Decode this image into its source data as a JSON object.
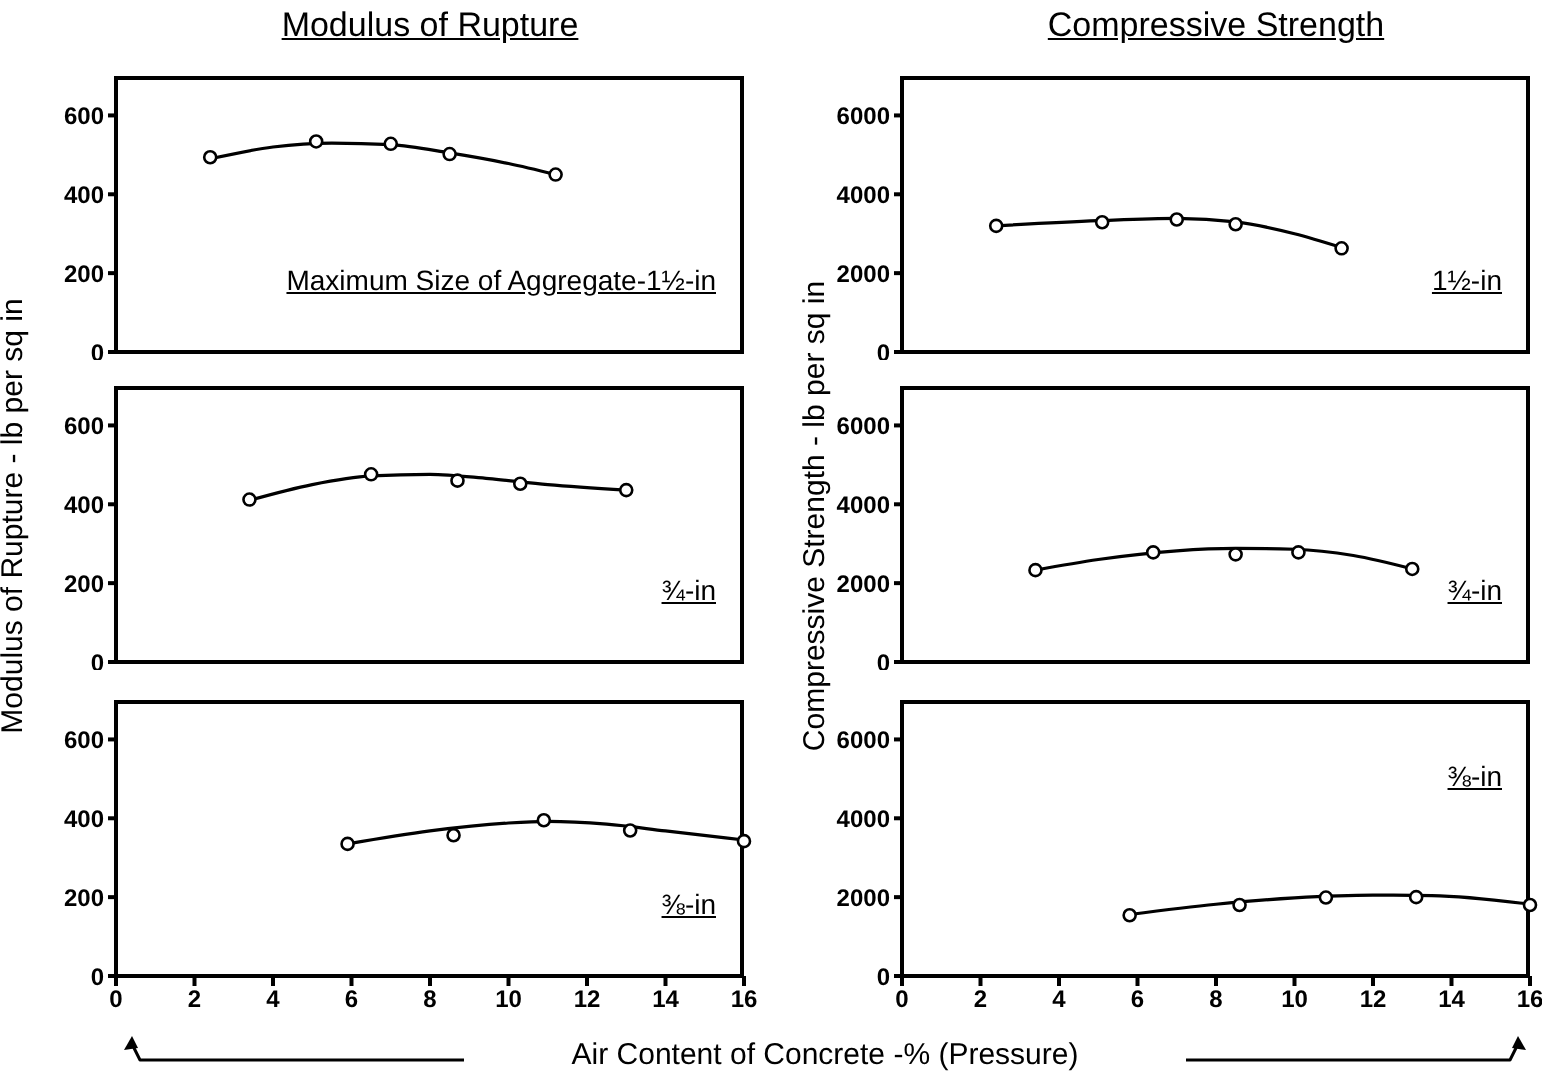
{
  "chart_data": [
    {
      "type": "scatter",
      "title": "Modulus of Rupture",
      "xlim": [
        0,
        16
      ],
      "xticks": [
        0,
        2,
        4,
        6,
        8,
        10,
        12,
        14,
        16
      ],
      "ylim": [
        0,
        700
      ],
      "yticks": [
        0,
        200,
        400,
        600
      ],
      "tick_labels": "y",
      "grid": false,
      "legend": false,
      "annotations": [
        "Maximum Size of Aggregate-1½-in"
      ],
      "series": [
        {
          "type": "scatter",
          "color": "#000000",
          "marker": "circle",
          "x": [
            2.4,
            5.1,
            7.0,
            8.5,
            11.2
          ],
          "values": [
            494,
            534,
            528,
            502,
            450
          ]
        },
        {
          "type": "line",
          "color": "#000000",
          "marker": "none",
          "line_style": "solid",
          "x": [
            2.4,
            4,
            5.5,
            7,
            8.5,
            10,
            11.2
          ],
          "values": [
            490,
            520,
            530,
            526,
            505,
            478,
            450
          ]
        }
      ]
    },
    {
      "type": "scatter",
      "ylabel": "Modulus of Rupture - lb per sq in",
      "xlim": [
        0,
        16
      ],
      "xticks": [
        0,
        2,
        4,
        6,
        8,
        10,
        12,
        14,
        16
      ],
      "ylim": [
        0,
        700
      ],
      "yticks": [
        0,
        200,
        400,
        600
      ],
      "tick_labels": "y",
      "grid": false,
      "legend": false,
      "annotations": [
        "¾-in"
      ],
      "series": [
        {
          "type": "scatter",
          "color": "#000000",
          "marker": "circle",
          "x": [
            3.4,
            6.5,
            8.7,
            10.3,
            13.0
          ],
          "values": [
            412,
            476,
            460,
            452,
            436
          ]
        },
        {
          "type": "line",
          "color": "#000000",
          "marker": "none",
          "line_style": "solid",
          "x": [
            3.4,
            5,
            6.5,
            8,
            9.5,
            11,
            13
          ],
          "values": [
            410,
            450,
            472,
            476,
            465,
            450,
            436
          ]
        }
      ]
    },
    {
      "type": "scatter",
      "xlabel": "Air Content of Concrete -% (Pressure)",
      "xlim": [
        0,
        16
      ],
      "xticks": [
        0,
        2,
        4,
        6,
        8,
        10,
        12,
        14,
        16
      ],
      "ylim": [
        0,
        700
      ],
      "yticks": [
        0,
        200,
        400,
        600
      ],
      "grid": false,
      "legend": false,
      "annotations": [
        "⅜-in"
      ],
      "series": [
        {
          "type": "scatter",
          "color": "#000000",
          "marker": "circle",
          "x": [
            5.9,
            8.6,
            10.9,
            13.1,
            16.0
          ],
          "values": [
            335,
            357,
            395,
            369,
            342
          ]
        },
        {
          "type": "line",
          "color": "#000000",
          "marker": "none",
          "line_style": "solid",
          "x": [
            5.9,
            8,
            10,
            11,
            12.5,
            14,
            16
          ],
          "values": [
            335,
            368,
            388,
            392,
            385,
            368,
            345
          ]
        }
      ]
    },
    {
      "type": "scatter",
      "title": "Compressive Strength",
      "xlim": [
        0,
        16
      ],
      "xticks": [
        0,
        2,
        4,
        6,
        8,
        10,
        12,
        14,
        16
      ],
      "ylim": [
        0,
        7000
      ],
      "yticks": [
        0,
        2000,
        4000,
        6000
      ],
      "tick_labels": "y",
      "grid": false,
      "legend": false,
      "annotations": [
        "1½-in"
      ],
      "series": [
        {
          "type": "scatter",
          "color": "#000000",
          "marker": "circle",
          "x": [
            2.4,
            5.1,
            7.0,
            8.5,
            11.2
          ],
          "values": [
            3200,
            3290,
            3360,
            3240,
            2630
          ]
        },
        {
          "type": "line",
          "color": "#000000",
          "marker": "none",
          "line_style": "solid",
          "x": [
            2.4,
            5,
            7,
            8.5,
            10,
            11.2
          ],
          "values": [
            3200,
            3330,
            3390,
            3300,
            3000,
            2650
          ]
        }
      ]
    },
    {
      "type": "scatter",
      "ylabel": "Compressive Strength - lb per sq in",
      "xlim": [
        0,
        16
      ],
      "xticks": [
        0,
        2,
        4,
        6,
        8,
        10,
        12,
        14,
        16
      ],
      "ylim": [
        0,
        7000
      ],
      "yticks": [
        0,
        2000,
        4000,
        6000
      ],
      "tick_labels": "y",
      "grid": false,
      "legend": false,
      "annotations": [
        "¾-in"
      ],
      "series": [
        {
          "type": "scatter",
          "color": "#000000",
          "marker": "circle",
          "x": [
            3.4,
            6.4,
            8.5,
            10.1,
            13.0
          ],
          "values": [
            2330,
            2780,
            2730,
            2780,
            2360
          ]
        },
        {
          "type": "line",
          "color": "#000000",
          "marker": "none",
          "line_style": "solid",
          "x": [
            3.4,
            5,
            7,
            8.5,
            10,
            11.5,
            13
          ],
          "values": [
            2330,
            2600,
            2820,
            2880,
            2860,
            2700,
            2360
          ]
        }
      ]
    },
    {
      "type": "scatter",
      "xlim": [
        0,
        16
      ],
      "xticks": [
        0,
        2,
        4,
        6,
        8,
        10,
        12,
        14,
        16
      ],
      "ylim": [
        0,
        7000
      ],
      "yticks": [
        0,
        2000,
        4000,
        6000
      ],
      "grid": false,
      "legend": false,
      "annotations": [
        "⅜-in"
      ],
      "series": [
        {
          "type": "scatter",
          "color": "#000000",
          "marker": "circle",
          "x": [
            5.8,
            8.6,
            10.8,
            13.1,
            16.0
          ],
          "values": [
            1540,
            1800,
            1990,
            2000,
            1800
          ]
        },
        {
          "type": "line",
          "color": "#000000",
          "marker": "none",
          "line_style": "solid",
          "x": [
            5.8,
            8,
            10,
            12,
            13.5,
            16
          ],
          "values": [
            1560,
            1820,
            1980,
            2050,
            2040,
            1820
          ]
        }
      ]
    }
  ]
}
